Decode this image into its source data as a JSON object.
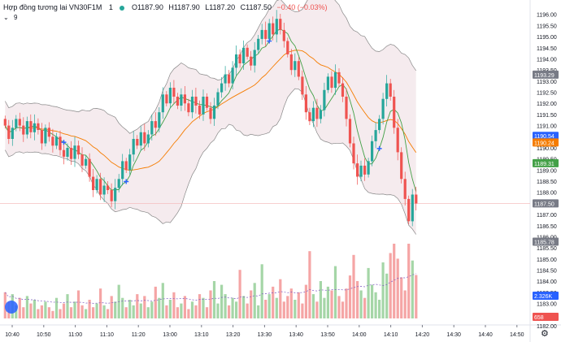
{
  "legend": {
    "symbol": "Hợp đồng tương lai VN30F1M",
    "interval": "1",
    "open": "O1187.90",
    "high": "H1187.90",
    "low": "L1187.20",
    "close": "C1187.50",
    "change": "−0.40 (−0.03%)",
    "indicator_count": "9"
  },
  "icons": {
    "collapse": "chevron-down-icon",
    "logo": "tradingview-logo-icon",
    "settings": "gear-icon"
  },
  "colors": {
    "up": "#26a69a",
    "down": "#ef5350",
    "band_fill": "#f3e6ea",
    "band_line": "#888888",
    "basis": "#f57c00",
    "signal": "#43a047",
    "vol_up": "#a5d6a7",
    "vol_down": "#f5a5a5",
    "marker": "#2962ff"
  },
  "chart_data": {
    "type": "candlestick",
    "title": "",
    "price_axis": {
      "min": 1182,
      "max": 1196.5,
      "tick_values": [
        1182.0,
        1182.5,
        1183.0,
        1183.5,
        1184.0,
        1184.5,
        1185.0,
        1185.5,
        1186.0,
        1186.5,
        1187.0,
        1187.5,
        1188.0,
        1188.5,
        1189.0,
        1189.5,
        1190.0,
        1190.5,
        1191.0,
        1191.5,
        1192.0,
        1192.5,
        1193.0,
        1193.5,
        1194.0,
        1194.5,
        1195.0,
        1195.5,
        1196.0
      ],
      "tick_labels": [
        "1182.00",
        "1182.50",
        "1183.00",
        "1183.50",
        "1184.00",
        "1184.50",
        "1185.00",
        "1185.50",
        "1186.00",
        "1186.50",
        "1187.00",
        "1187.50",
        "1188.00",
        "1188.50",
        "1189.00",
        "1189.50",
        "1190.00",
        "1190.50",
        "1191.00",
        "1191.50",
        "1192.00",
        "1192.50",
        "1193.00",
        "1193.50",
        "1194.00",
        "1194.50",
        "1195.00",
        "1195.50",
        "1196.00"
      ]
    },
    "time_axis": {
      "labels": [
        "10:40",
        "10:50",
        "11:00",
        "11:10",
        "11:20",
        "13:00",
        "13:10",
        "13:20",
        "13:30",
        "13:40",
        "13:50",
        "14:00",
        "14:10",
        "14:20",
        "14:30",
        "14:40",
        "14:50"
      ]
    },
    "badges": [
      {
        "value": 1193.29,
        "label": "1193.29",
        "color": "#787b86"
      },
      {
        "value": 1190.54,
        "label": "1190.54",
        "color": "#2962ff"
      },
      {
        "value": 1190.24,
        "label": "1190.24",
        "color": "#f57c00"
      },
      {
        "value": 1189.31,
        "label": "1189.31",
        "color": "#43a047"
      },
      {
        "value": 1187.5,
        "label": "1187.50",
        "color": "#787b86"
      },
      {
        "value": 1185.78,
        "label": "1185.78",
        "color": "#787b86"
      },
      {
        "value": 1183.35,
        "label": "2.326K",
        "color": "#2962ff"
      },
      {
        "value": 1182.4,
        "label": "658",
        "color": "#ef5350"
      }
    ],
    "last_price": 1187.5,
    "closes": [
      1191.0,
      1190.4,
      1190.9,
      1191.3,
      1191.0,
      1190.6,
      1191.2,
      1190.7,
      1191.1,
      1190.8,
      1190.2,
      1190.9,
      1190.5,
      1190.1,
      1190.5,
      1189.9,
      1189.6,
      1190.0,
      1189.5,
      1190.1,
      1189.7,
      1189.2,
      1189.5,
      1188.7,
      1188.1,
      1188.6,
      1187.9,
      1188.3,
      1188.1,
      1187.6,
      1188.2,
      1188.6,
      1189.4,
      1189.0,
      1189.7,
      1190.4,
      1190.1,
      1190.7,
      1190.2,
      1190.6,
      1191.2,
      1190.9,
      1191.6,
      1192.4,
      1192.0,
      1192.7,
      1192.3,
      1191.9,
      1192.4,
      1192.0,
      1191.6,
      1192.3,
      1191.9,
      1191.5,
      1192.3,
      1191.8,
      1191.3,
      1191.9,
      1192.5,
      1192.9,
      1193.3,
      1192.9,
      1193.6,
      1194.2,
      1193.8,
      1194.5,
      1194.1,
      1193.7,
      1194.4,
      1194.9,
      1195.3,
      1194.9,
      1195.6,
      1195.1,
      1195.8,
      1195.3,
      1194.8,
      1194.2,
      1193.5,
      1193.9,
      1193.2,
      1192.4,
      1191.6,
      1191.2,
      1191.8,
      1191.3,
      1191.7,
      1192.6,
      1193.2,
      1192.7,
      1193.4,
      1192.9,
      1192.3,
      1191.3,
      1190.2,
      1189.3,
      1188.7,
      1189.2,
      1188.8,
      1189.4,
      1190.3,
      1190.8,
      1191.3,
      1192.2,
      1192.9,
      1192.3,
      1190.9,
      1189.8,
      1188.6,
      1187.7,
      1186.7,
      1187.9,
      1187.5
    ],
    "volume_note": "volume per bar in matching order",
    "volumes": [
      1400,
      900,
      1300,
      700,
      1100,
      600,
      1200,
      800,
      1000,
      500,
      700,
      900,
      600,
      400,
      1100,
      500,
      800,
      1300,
      600,
      900,
      1500,
      700,
      500,
      1000,
      600,
      800,
      1600,
      700,
      500,
      1200,
      900,
      1800,
      1100,
      600,
      1000,
      700,
      1300,
      800,
      1200,
      600,
      900,
      1700,
      1100,
      1900,
      700,
      1000,
      1400,
      600,
      800,
      1200,
      500,
      900,
      700,
      1300,
      1100,
      600,
      1500,
      2000,
      800,
      1800,
      1300,
      700,
      1100,
      900,
      2600,
      1200,
      800,
      1500,
      1900,
      700,
      2900,
      1000,
      1300,
      1700,
      1100,
      2100,
      900,
      1200,
      1600,
      1000,
      1400,
      800,
      1800,
      3600,
      1300,
      900,
      2000,
      1100,
      1700,
      1500,
      2800,
      1200,
      900,
      1600,
      2300,
      3400,
      2000,
      1500,
      1100,
      2700,
      1800,
      1400,
      1000,
      3000,
      2400,
      3500,
      4000,
      3200,
      2200,
      1500,
      4000,
      3100,
      2326
    ]
  }
}
